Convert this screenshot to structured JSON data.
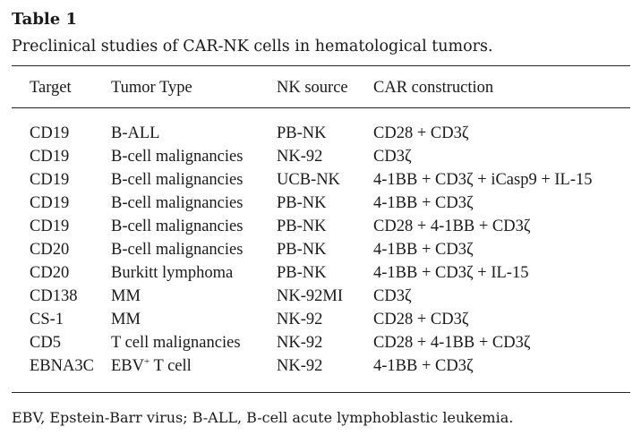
{
  "table": {
    "label": "Table 1",
    "caption": "Preclinical studies of CAR-NK cells in hematological tumors.",
    "headers": {
      "target": "Target",
      "tumor_type": "Tumor Type",
      "nk_source": "NK source",
      "car_construction": "CAR construction"
    },
    "rows": [
      {
        "target": "CD19",
        "tumor_type": "B-ALL",
        "nk_source": "PB-NK",
        "car_construction": "CD28 + CD3ζ"
      },
      {
        "target": "CD19",
        "tumor_type": "B-cell malignancies",
        "nk_source": "NK-92",
        "car_construction": "CD3ζ"
      },
      {
        "target": "CD19",
        "tumor_type": "B-cell malignancies",
        "nk_source": "UCB-NK",
        "car_construction": "4-1BB + CD3ζ + iCasp9 + IL-15"
      },
      {
        "target": "CD19",
        "tumor_type": "B-cell malignancies",
        "nk_source": "PB-NK",
        "car_construction": "4-1BB + CD3ζ"
      },
      {
        "target": "CD19",
        "tumor_type": "B-cell malignancies",
        "nk_source": "PB-NK",
        "car_construction": "CD28 + 4-1BB + CD3ζ"
      },
      {
        "target": "CD20",
        "tumor_type": "B-cell malignancies",
        "nk_source": "PB-NK",
        "car_construction": "4-1BB + CD3ζ"
      },
      {
        "target": "CD20",
        "tumor_type": "Burkitt lymphoma",
        "nk_source": "PB-NK",
        "car_construction": "4-1BB + CD3ζ + IL-15"
      },
      {
        "target": "CD138",
        "tumor_type": "MM",
        "nk_source": "NK-92MI",
        "car_construction": "CD3ζ"
      },
      {
        "target": "CS-1",
        "tumor_type": "MM",
        "nk_source": "NK-92",
        "car_construction": "CD28 + CD3ζ"
      },
      {
        "target": "CD5",
        "tumor_type": "T cell malignancies",
        "nk_source": "NK-92",
        "car_construction": "CD28 + 4-1BB + CD3ζ"
      },
      {
        "target": "EBNA3C",
        "tumor_type_base": "EBV",
        "tumor_type_sup": "+",
        "tumor_type_rest": " T cell",
        "nk_source": "NK-92",
        "car_construction": "4-1BB + CD3ζ"
      }
    ],
    "footnote": "EBV, Epstein-Barr virus; B-ALL, B-cell acute lymphoblastic leukemia."
  }
}
